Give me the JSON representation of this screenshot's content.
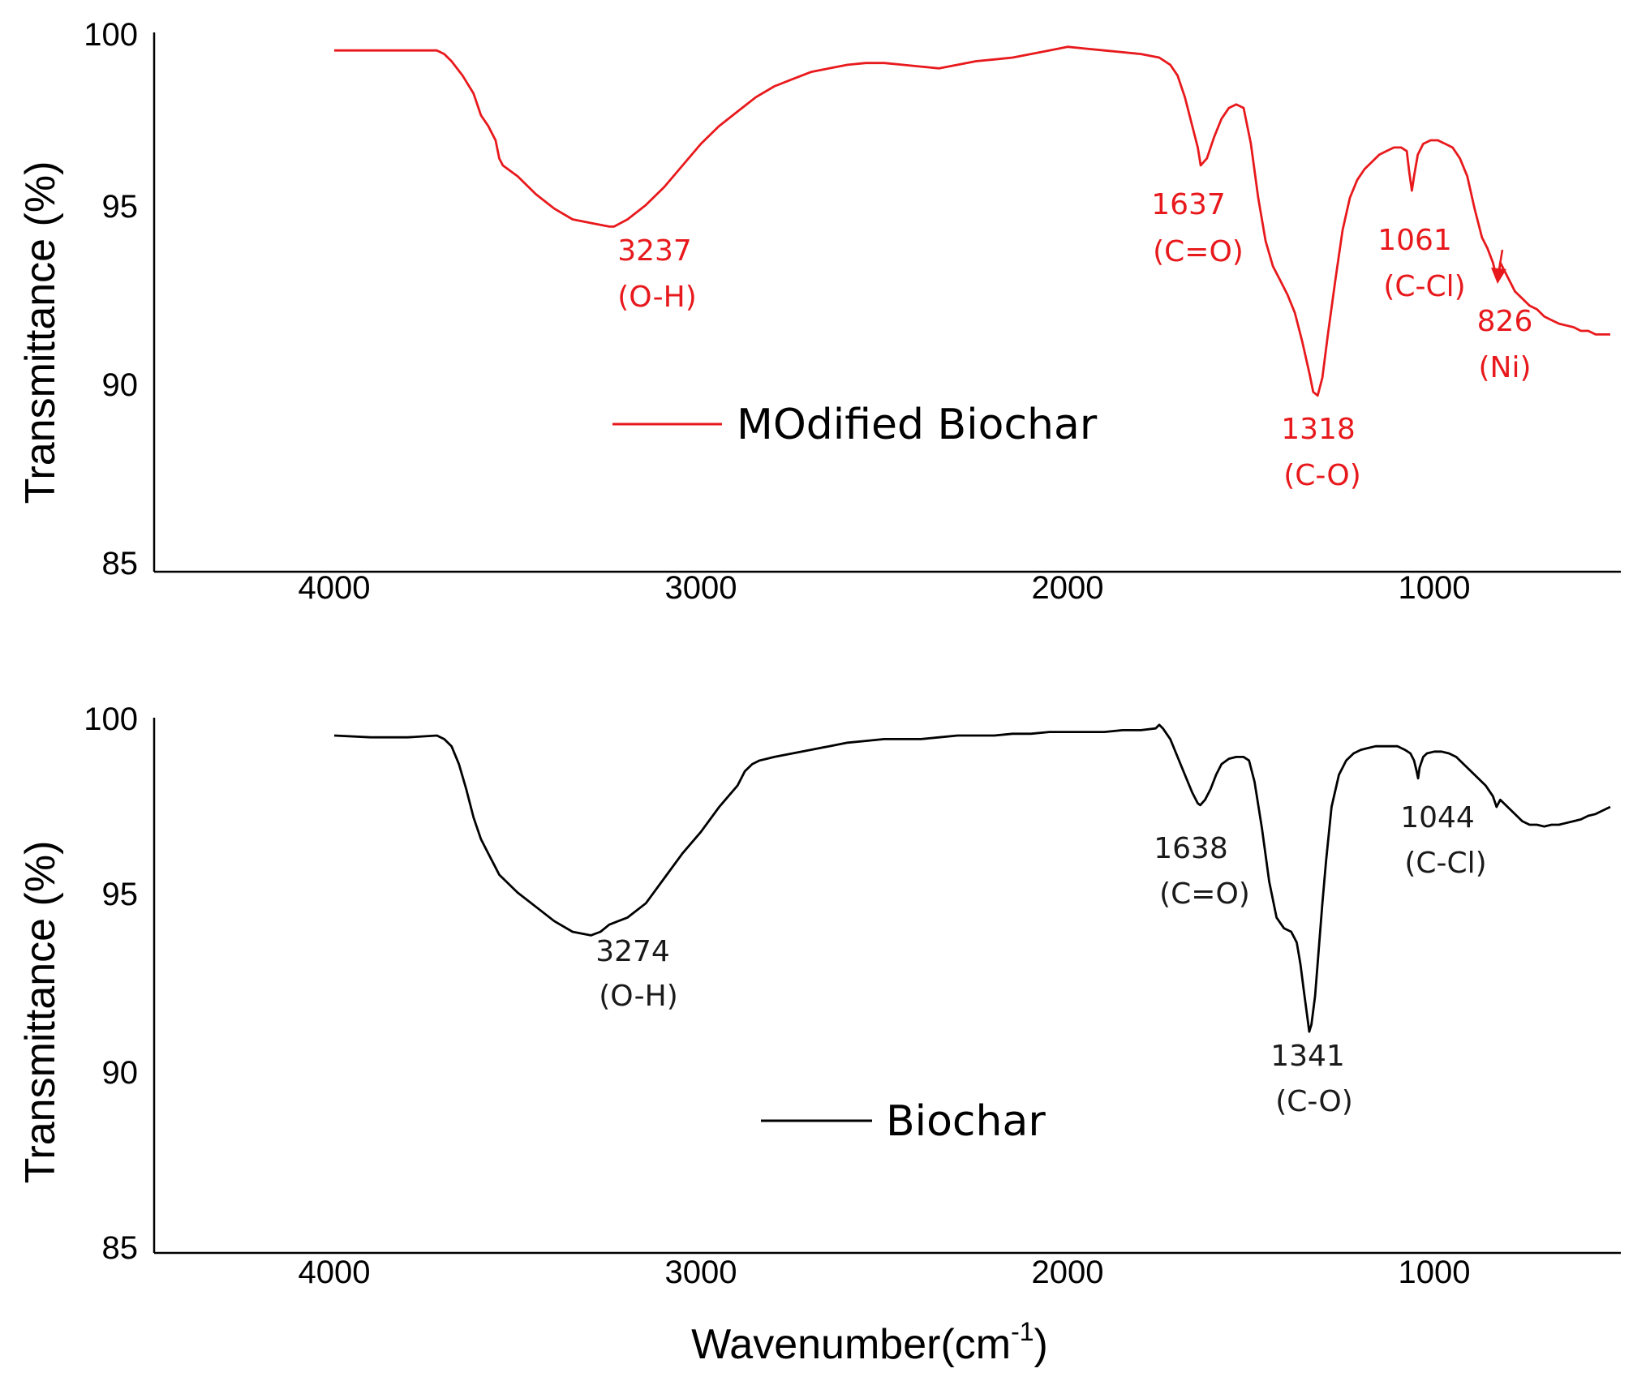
{
  "chart_data": [
    {
      "type": "line",
      "name": "top-panel",
      "color": "#e8191c",
      "xlim": [
        4500,
        500
      ],
      "ylim": [
        85,
        100
      ],
      "xticks": [
        4000,
        3000,
        2000,
        1000
      ],
      "xtick_labels": [
        "4000",
        "3000",
        "2000",
        "1000"
      ],
      "yticks": [
        85,
        90,
        95,
        100
      ],
      "ytick_labels": [
        "85",
        "90",
        "95",
        "100"
      ],
      "ylabel": "Transmittance (%)",
      "legend_label": "MOdified Biochar",
      "series": [
        {
          "name": "MOdified Biochar",
          "x": [
            4000,
            3900,
            3800,
            3720,
            3700,
            3680,
            3650,
            3620,
            3600,
            3580,
            3560,
            3550,
            3540,
            3500,
            3450,
            3400,
            3350,
            3300,
            3250,
            3237,
            3200,
            3150,
            3100,
            3050,
            3000,
            2950,
            2900,
            2850,
            2800,
            2750,
            2700,
            2650,
            2600,
            2550,
            2500,
            2450,
            2400,
            2350,
            2300,
            2250,
            2200,
            2150,
            2100,
            2050,
            2000,
            1950,
            1900,
            1850,
            1800,
            1750,
            1720,
            1700,
            1680,
            1660,
            1645,
            1637,
            1620,
            1600,
            1580,
            1560,
            1540,
            1520,
            1500,
            1480,
            1460,
            1440,
            1420,
            1400,
            1380,
            1360,
            1340,
            1330,
            1318,
            1305,
            1290,
            1270,
            1250,
            1230,
            1210,
            1190,
            1170,
            1150,
            1130,
            1110,
            1090,
            1075,
            1068,
            1061,
            1055,
            1045,
            1030,
            1010,
            990,
            970,
            950,
            930,
            910,
            890,
            870,
            855,
            840,
            830,
            826,
            820,
            810,
            800,
            790,
            780,
            760,
            740,
            720,
            700,
            680,
            660,
            640,
            620,
            600,
            580,
            560,
            540,
            520
          ],
          "y": [
            99.5,
            99.5,
            99.5,
            99.5,
            99.4,
            99.2,
            98.8,
            98.3,
            97.7,
            97.4,
            97.0,
            96.5,
            96.3,
            96.0,
            95.5,
            95.1,
            94.8,
            94.7,
            94.6,
            94.6,
            94.8,
            95.2,
            95.7,
            96.3,
            96.9,
            97.4,
            97.8,
            98.2,
            98.5,
            98.7,
            98.9,
            99.0,
            99.1,
            99.15,
            99.15,
            99.1,
            99.05,
            99.0,
            99.1,
            99.2,
            99.25,
            99.3,
            99.4,
            99.5,
            99.6,
            99.55,
            99.5,
            99.45,
            99.4,
            99.3,
            99.1,
            98.8,
            98.2,
            97.4,
            96.8,
            96.3,
            96.5,
            97.1,
            97.6,
            97.9,
            98.0,
            97.9,
            96.9,
            95.4,
            94.2,
            93.5,
            93.1,
            92.7,
            92.2,
            91.4,
            90.5,
            90.0,
            89.9,
            90.4,
            91.6,
            93.1,
            94.5,
            95.4,
            95.9,
            96.2,
            96.4,
            96.6,
            96.7,
            96.8,
            96.8,
            96.7,
            96.1,
            95.6,
            96.0,
            96.6,
            96.9,
            97.0,
            97.0,
            96.9,
            96.8,
            96.5,
            96.0,
            95.1,
            94.3,
            94.0,
            93.6,
            93.2,
            93.1,
            93.6,
            93.4,
            93.2,
            93.0,
            92.8,
            92.6,
            92.4,
            92.3,
            92.1,
            92.0,
            91.9,
            91.85,
            91.8,
            91.7,
            91.7,
            91.6,
            91.6,
            91.6
          ]
        }
      ],
      "annotations": [
        {
          "id": "3237",
          "line1": "3237",
          "line2": "(O-H)"
        },
        {
          "id": "1637",
          "line1": "1637",
          "line2": "(C=O)"
        },
        {
          "id": "1318",
          "line1": "1318",
          "line2": "(C-O)"
        },
        {
          "id": "1061",
          "line1": "1061",
          "line2": "(C-Cl)"
        },
        {
          "id": "826",
          "line1": "826",
          "line2": "(Ni)"
        }
      ]
    },
    {
      "type": "line",
      "name": "bottom-panel",
      "color": "#000000",
      "xlim": [
        4500,
        500
      ],
      "ylim": [
        85,
        100
      ],
      "xticks": [
        4000,
        3000,
        2000,
        1000
      ],
      "xtick_labels": [
        "4000",
        "3000",
        "2000",
        "1000"
      ],
      "yticks": [
        85,
        90,
        95,
        100
      ],
      "ytick_labels": [
        "85",
        "90",
        "95",
        "100"
      ],
      "ylabel": "Transmittance (%)",
      "xlabel_main": "Wavenumber(cm",
      "xlabel_sup": "-1",
      "xlabel_close": ")",
      "legend_label": "Biochar",
      "series": [
        {
          "name": "Biochar",
          "x": [
            4000,
            3900,
            3800,
            3720,
            3700,
            3680,
            3660,
            3640,
            3620,
            3600,
            3580,
            3560,
            3550,
            3530,
            3500,
            3450,
            3400,
            3350,
            3300,
            3274,
            3250,
            3200,
            3150,
            3100,
            3050,
            3000,
            2950,
            2900,
            2880,
            2860,
            2840,
            2820,
            2800,
            2750,
            2700,
            2650,
            2600,
            2550,
            2500,
            2450,
            2400,
            2350,
            2300,
            2250,
            2200,
            2150,
            2100,
            2050,
            2000,
            1950,
            1900,
            1850,
            1800,
            1760,
            1750,
            1740,
            1720,
            1700,
            1680,
            1660,
            1645,
            1638,
            1625,
            1610,
            1595,
            1580,
            1560,
            1540,
            1520,
            1505,
            1490,
            1470,
            1450,
            1430,
            1410,
            1390,
            1375,
            1365,
            1355,
            1346,
            1341,
            1335,
            1325,
            1315,
            1305,
            1295,
            1280,
            1260,
            1240,
            1220,
            1200,
            1180,
            1160,
            1140,
            1120,
            1100,
            1080,
            1065,
            1055,
            1048,
            1044,
            1040,
            1030,
            1020,
            1000,
            980,
            960,
            940,
            920,
            900,
            880,
            860,
            840,
            830,
            820,
            800,
            780,
            760,
            740,
            720,
            700,
            680,
            660,
            640,
            620,
            600,
            580,
            560,
            540,
            520
          ],
          "y": [
            99.5,
            99.45,
            99.45,
            99.5,
            99.4,
            99.2,
            98.7,
            98.0,
            97.2,
            96.6,
            96.2,
            95.8,
            95.6,
            95.4,
            95.1,
            94.7,
            94.3,
            94.0,
            93.9,
            94.0,
            94.2,
            94.4,
            94.8,
            95.5,
            96.2,
            96.8,
            97.5,
            98.1,
            98.5,
            98.7,
            98.8,
            98.85,
            98.9,
            99.0,
            99.1,
            99.2,
            99.3,
            99.35,
            99.4,
            99.4,
            99.4,
            99.45,
            99.5,
            99.5,
            99.5,
            99.55,
            99.55,
            99.6,
            99.6,
            99.6,
            99.6,
            99.65,
            99.65,
            99.7,
            99.8,
            99.7,
            99.4,
            98.9,
            98.4,
            97.9,
            97.6,
            97.55,
            97.7,
            98.0,
            98.4,
            98.7,
            98.85,
            98.9,
            98.9,
            98.8,
            98.2,
            96.9,
            95.4,
            94.4,
            94.1,
            94.0,
            93.7,
            93.1,
            92.3,
            91.6,
            91.2,
            91.4,
            92.2,
            93.5,
            94.8,
            96.0,
            97.5,
            98.4,
            98.8,
            99.0,
            99.1,
            99.15,
            99.2,
            99.2,
            99.2,
            99.2,
            99.1,
            99.0,
            98.8,
            98.5,
            98.3,
            98.6,
            98.9,
            99.0,
            99.05,
            99.05,
            99.0,
            98.9,
            98.7,
            98.5,
            98.3,
            98.1,
            97.8,
            97.5,
            97.7,
            97.5,
            97.3,
            97.1,
            97.0,
            97.0,
            96.95,
            97.0,
            97.0,
            97.05,
            97.1,
            97.15,
            97.25,
            97.3,
            97.4,
            97.5
          ]
        }
      ],
      "annotations": [
        {
          "id": "3274",
          "line1": "3274",
          "line2": "(O-H)"
        },
        {
          "id": "1638",
          "line1": "1638",
          "line2": "(C=O)"
        },
        {
          "id": "1341",
          "line1": "1341",
          "line2": "(C-O)"
        },
        {
          "id": "1044",
          "line1": "1044",
          "line2": "(C-Cl)"
        }
      ]
    }
  ]
}
